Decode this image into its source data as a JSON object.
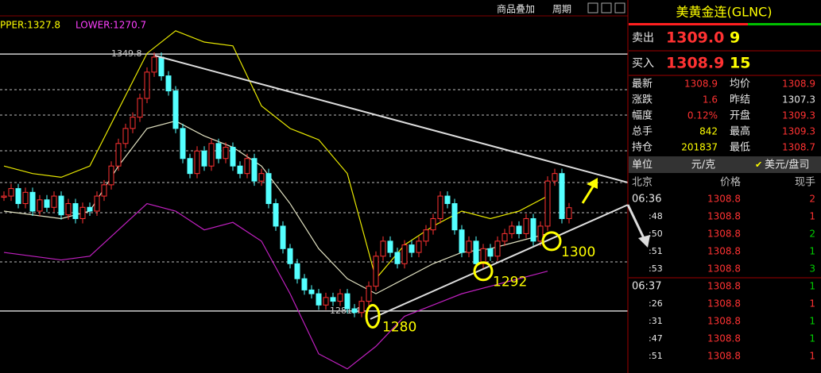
{
  "toolbar": {
    "overlay": "商品叠加",
    "period": "周期"
  },
  "indicator": {
    "upper": "PPER:1327.8",
    "lower": "LOWER:1270.7"
  },
  "chart": {
    "type": "candlestick",
    "ylim": [
      1264.9,
      1364.2
    ],
    "closes": [
      1312,
      1314,
      1310,
      1313,
      1308,
      1311,
      1309,
      1312,
      1307,
      1310,
      1306,
      1309,
      1308,
      1312,
      1315,
      1320,
      1326,
      1330,
      1333,
      1338,
      1345,
      1349,
      1344,
      1340,
      1330,
      1322,
      1318,
      1324,
      1320,
      1326,
      1322,
      1325,
      1320,
      1318,
      1322,
      1316,
      1318,
      1310,
      1304,
      1298,
      1294,
      1290,
      1287,
      1286,
      1283,
      1285,
      1284,
      1286,
      1282,
      1281,
      1284,
      1288,
      1296,
      1300,
      1297,
      1294,
      1299,
      1297,
      1300,
      1303,
      1306,
      1312,
      1310,
      1303,
      1297,
      1300,
      1294,
      1298,
      1296,
      1300,
      1302,
      1304,
      1302,
      1306,
      1300,
      1304,
      1316,
      1318,
      1306,
      1308.9
    ],
    "upper": [
      1320,
      1318,
      1317,
      1320,
      1335,
      1350,
      1356,
      1353,
      1352,
      1336,
      1330,
      1327,
      1318,
      1290,
      1299,
      1304,
      1308,
      1306,
      1308,
      1312
    ],
    "mid": [
      1308,
      1307,
      1306,
      1308,
      1320,
      1330,
      1332,
      1328,
      1325,
      1320,
      1310,
      1298,
      1290,
      1286,
      1290,
      1294,
      1297,
      1298,
      1300,
      1302
    ],
    "lower": [
      1297,
      1296,
      1295,
      1296,
      1303,
      1310,
      1308,
      1303,
      1305,
      1300,
      1286,
      1270,
      1266,
      1272,
      1280,
      1283,
      1286,
      1288,
      1290,
      1292
    ],
    "levels": [
      1349.8,
      1281.4
    ],
    "annotations": [
      1280,
      1292,
      1300
    ]
  },
  "quote": {
    "name": "美黄金连(GLNC)",
    "sell": {
      "label": "卖出",
      "price": "1309.0",
      "qty": 9
    },
    "buy": {
      "label": "买入",
      "price": "1308.9",
      "qty": 15
    },
    "stats": [
      [
        "最新",
        "1308.9",
        "均价",
        "1308.9"
      ],
      [
        "涨跌",
        "1.6",
        "昨结",
        "1307.3"
      ],
      [
        "幅度",
        "0.12%",
        "开盘",
        "1309.3"
      ],
      [
        "总手",
        "842",
        "最高",
        "1309.3"
      ],
      [
        "持仓",
        "201837",
        "最低",
        "1308.7"
      ]
    ],
    "unit": {
      "label": "单位",
      "value": "元/克",
      "alt": "美元/盘司"
    },
    "header": [
      "北京",
      "价格",
      "现手"
    ],
    "trades": [
      [
        "06:36",
        "1308.8",
        2
      ],
      [
        ":48",
        "1308.8",
        1
      ],
      [
        ":50",
        "1308.8",
        2
      ],
      [
        ":51",
        "1308.8",
        1
      ],
      [
        ":53",
        "1308.8",
        3
      ],
      [
        "06:37",
        "1308.8",
        1
      ],
      [
        ":26",
        "1308.8",
        1
      ],
      [
        ":31",
        "1308.8",
        1
      ],
      [
        ":47",
        "1308.8",
        1
      ],
      [
        ":51",
        "1308.8",
        1
      ]
    ]
  }
}
